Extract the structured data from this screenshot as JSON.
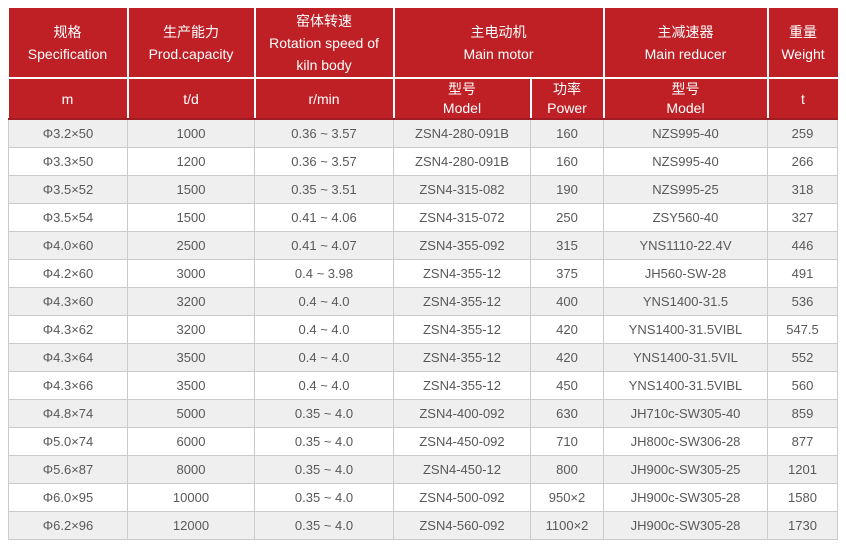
{
  "colors": {
    "header_red": "#bf2026",
    "header_divider_dark_red": "#9e1c22",
    "stripe_gray": "#efefef",
    "grid_border": "#cbcbcb",
    "body_text": "#58595b",
    "header_text": "#ffffff"
  },
  "chart_data": {
    "type": "table",
    "title": "Rotary kiln technical specification table",
    "header": {
      "groups": [
        {
          "zh": "规格",
          "en": "Specification"
        },
        {
          "zh": "生产能力",
          "en": "Prod.capacity"
        },
        {
          "zh": "窑体转速",
          "en": "Rotation speed of kiln body"
        },
        {
          "zh": "主电动机",
          "en": "Main motor"
        },
        {
          "zh": "主减速器",
          "en": "Main reducer"
        },
        {
          "zh": "重量",
          "en": "Weight"
        }
      ],
      "sub": {
        "spec_unit": "m",
        "capacity_unit": "t/d",
        "speed_unit": "r/min",
        "motor_model_zh": "型号",
        "motor_model_en": "Model",
        "motor_power_zh": "功率",
        "motor_power_en": "Power",
        "reducer_model_zh": "型号",
        "reducer_model_en": "Model",
        "weight_unit": "t"
      }
    },
    "rows": [
      [
        "Φ3.2×50",
        "1000",
        "0.36 ~ 3.57",
        "ZSN4-280-091B",
        "160",
        "NZS995-40",
        "259"
      ],
      [
        "Φ3.3×50",
        "1200",
        "0.36 ~ 3.57",
        "ZSN4-280-091B",
        "160",
        "NZS995-40",
        "266"
      ],
      [
        "Φ3.5×52",
        "1500",
        "0.35 ~ 3.51",
        "ZSN4-315-082",
        "190",
        "NZS995-25",
        "318"
      ],
      [
        "Φ3.5×54",
        "1500",
        "0.41 ~ 4.06",
        "ZSN4-315-072",
        "250",
        "ZSY560-40",
        "327"
      ],
      [
        "Φ4.0×60",
        "2500",
        "0.41 ~ 4.07",
        "ZSN4-355-092",
        "315",
        "YNS1110-22.4V",
        "446"
      ],
      [
        "Φ4.2×60",
        "3000",
        "0.4 ~ 3.98",
        "ZSN4-355-12",
        "375",
        "JH560-SW-28",
        "491"
      ],
      [
        "Φ4.3×60",
        "3200",
        "0.4 ~ 4.0",
        "ZSN4-355-12",
        "400",
        "YNS1400-31.5",
        "536"
      ],
      [
        "Φ4.3×62",
        "3200",
        "0.4 ~ 4.0",
        "ZSN4-355-12",
        "420",
        "YNS1400-31.5VIBL",
        "547.5"
      ],
      [
        "Φ4.3×64",
        "3500",
        "0.4 ~ 4.0",
        "ZSN4-355-12",
        "420",
        "YNS1400-31.5VIL",
        "552"
      ],
      [
        "Φ4.3×66",
        "3500",
        "0.4 ~ 4.0",
        "ZSN4-355-12",
        "450",
        "YNS1400-31.5VIBL",
        "560"
      ],
      [
        "Φ4.8×74",
        "5000",
        "0.35 ~ 4.0",
        "ZSN4-400-092",
        "630",
        "JH710c-SW305-40",
        "859"
      ],
      [
        "Φ5.0×74",
        "6000",
        "0.35 ~ 4.0",
        "ZSN4-450-092",
        "710",
        "JH800c-SW306-28",
        "877"
      ],
      [
        "Φ5.6×87",
        "8000",
        "0.35 ~ 4.0",
        "ZSN4-450-12",
        "800",
        "JH900c-SW305-25",
        "1201"
      ],
      [
        "Φ6.0×95",
        "10000",
        "0.35 ~ 4.0",
        "ZSN4-500-092",
        "950×2",
        "JH900c-SW305-28",
        "1580"
      ],
      [
        "Φ6.2×96",
        "12000",
        "0.35 ~ 4.0",
        "ZSN4-560-092",
        "1100×2",
        "JH900c-SW305-28",
        "1730"
      ]
    ]
  }
}
